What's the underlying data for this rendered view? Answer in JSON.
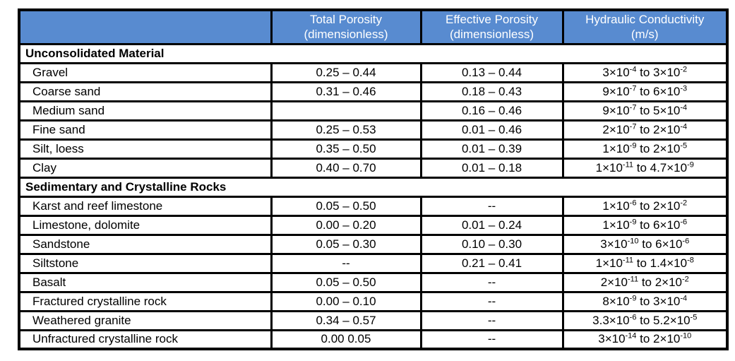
{
  "colors": {
    "header_bg": "#588BD0",
    "header_text": "#FFFFFF",
    "border": "#000000",
    "text": "#000000",
    "page_bg": "#FFFFFF"
  },
  "table": {
    "header": {
      "corner": "",
      "cols": [
        {
          "line1": "Total Porosity",
          "line2": "(dimensionless)"
        },
        {
          "line1": "Effective Porosity",
          "line2": "(dimensionless)"
        },
        {
          "line1": "Hydraulic Conductivity",
          "line2": "(m/s)"
        }
      ]
    },
    "sections": [
      {
        "title": "Unconsolidated Material",
        "rows": [
          {
            "material": "Gravel",
            "total": "0.25 – 0.44",
            "effective": "0.13 – 0.44",
            "k": "3×10^-4 to 3×10^-2"
          },
          {
            "material": "Coarse sand",
            "total": "0.31 – 0.46",
            "effective": "0.18 – 0.43",
            "k": "9×10^-7 to 6×10^-3"
          },
          {
            "material": "Medium sand",
            "total": "",
            "effective": "0.16 – 0.46",
            "k": "9×10^-7 to 5×10^-4"
          },
          {
            "material": "Fine sand",
            "total": "0.25 – 0.53",
            "effective": "0.01 – 0.46",
            "k": "2×10^-7 to 2×10^-4"
          },
          {
            "material": "Silt, loess",
            "total": "0.35 – 0.50",
            "effective": "0.01 – 0.39",
            "k": "1×10^-9 to 2×10^-5"
          },
          {
            "material": "Clay",
            "total": "0.40 – 0.70",
            "effective": "0.01 – 0.18",
            "k": "1×10^-11 to 4.7×10^-9"
          }
        ]
      },
      {
        "title": "Sedimentary and Crystalline Rocks",
        "rows": [
          {
            "material": "Karst and reef limestone",
            "total": "0.05 – 0.50",
            "effective": "--",
            "k": "1×10^-6 to 2×10^-2"
          },
          {
            "material": "Limestone, dolomite",
            "total": "0.00 – 0.20",
            "effective": "0.01 – 0.24",
            "k": "1×10^-9 to 6×10^-6"
          },
          {
            "material": "Sandstone",
            "total": "0.05 – 0.30",
            "effective": "0.10 – 0.30",
            "k": "3×10^-10 to 6×10^-6"
          },
          {
            "material": "Siltstone",
            "total": "--",
            "effective": "0.21 – 0.41",
            "k": "1×10^-11 to 1.4×10^-8"
          },
          {
            "material": "Basalt",
            "total": "0.05 – 0.50",
            "effective": "--",
            "k": "2×10^-11 to 2×10^-2"
          },
          {
            "material": "Fractured crystalline rock",
            "total": "0.00 – 0.10",
            "effective": "--",
            "k": "8×10^-9 to 3×10^-4"
          },
          {
            "material": "Weathered granite",
            "total": "0.34 – 0.57",
            "effective": "--",
            "k": "3.3×10^-6 to 5.2×10^-5"
          },
          {
            "material": "Unfractured crystalline rock",
            "total": "0.00 0.05",
            "effective": "--",
            "k": "3×10^-14 to 2×10^-10"
          }
        ]
      }
    ]
  }
}
